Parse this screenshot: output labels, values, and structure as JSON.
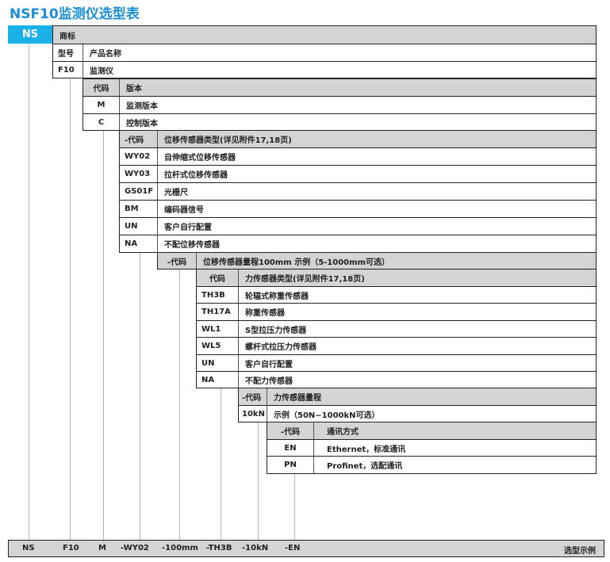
{
  "title": "NSF10监测仪选型表",
  "brand": {
    "code": "NS",
    "label": "商标",
    "color": "#1ab0e8"
  },
  "model": {
    "header": [
      "型号",
      "产品名称"
    ],
    "rows": [
      [
        "F10",
        "监测仪"
      ]
    ]
  },
  "version": {
    "header": [
      "代码",
      "版本"
    ],
    "rows": [
      [
        "M",
        "监测版本"
      ],
      [
        "C",
        "控制版本"
      ]
    ]
  },
  "displacement_type": {
    "header": [
      "-代码",
      "位移传感器类型(详见附件17,18页)"
    ],
    "rows": [
      [
        "WY02",
        "自伸缩式位移传感器"
      ],
      [
        "WY03",
        "拉杆式位移传感器"
      ],
      [
        "GS01F",
        "光栅尺"
      ],
      [
        "BM",
        "编码器信号"
      ],
      [
        "UN",
        "客户自行配置"
      ],
      [
        "NA",
        "不配位移传感器"
      ]
    ]
  },
  "displacement_range": {
    "header": [
      "-代码",
      "位移传感器量程100mm  示例（5-1000mm可选）"
    ]
  },
  "force_type": {
    "header": [
      "代码",
      "力传感器类型(详见附件17,18页)"
    ],
    "rows": [
      [
        "TH3B",
        "轮辐式称重传感器"
      ],
      [
        "TH17A",
        "称重传感器"
      ],
      [
        "WL1",
        "S型拉压力传感器"
      ],
      [
        "WL5",
        "螺杆式拉压力传感器"
      ],
      [
        "UN",
        "客户自行配置"
      ],
      [
        "NA",
        "不配力传感器"
      ]
    ]
  },
  "force_range": {
    "header": [
      "-代码",
      "力传感器量程"
    ],
    "rows": [
      [
        "10kN",
        "示例（50N~1000kN可选）"
      ]
    ]
  },
  "communication": {
    "header": [
      "-代码",
      "通讯方式"
    ],
    "rows": [
      [
        "EN",
        "Ethernet，标准通讯"
      ],
      [
        "PN",
        "Profinet，选配通讯"
      ]
    ]
  },
  "example": {
    "parts": [
      "NS",
      "F10",
      "M",
      "-WY02",
      "-100mm",
      "-TH3B",
      "-10kN",
      "-EN"
    ],
    "label": "选型示例"
  }
}
